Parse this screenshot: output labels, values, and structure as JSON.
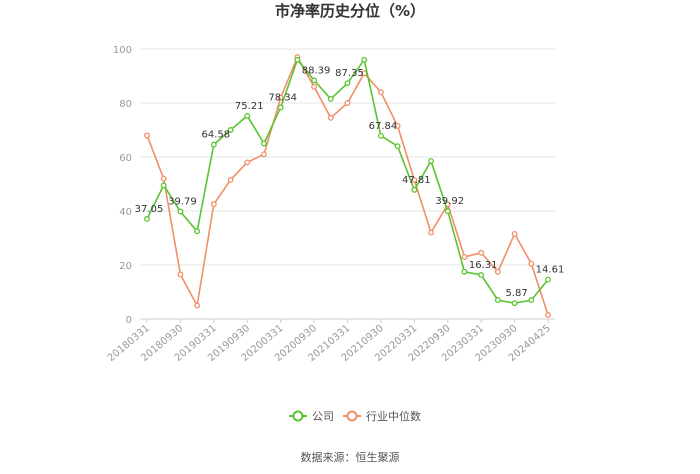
{
  "chart_data": {
    "type": "line",
    "title": "市净率历史分位（%）",
    "source": "数据来源：恒生聚源",
    "ylim": [
      0,
      100
    ],
    "yticks": [
      0,
      20,
      40,
      60,
      80,
      100
    ],
    "grid": true,
    "legend_position": "bottom",
    "x": [
      "20180331",
      "20180630",
      "20180930",
      "20181231",
      "20190331",
      "20190630",
      "20190930",
      "20191231",
      "20200331",
      "20200630",
      "20200930",
      "20201231",
      "20210331",
      "20210630",
      "20210930",
      "20211231",
      "20220331",
      "20220630",
      "20220930",
      "20221231",
      "20230331",
      "20230630",
      "20230930",
      "20231231",
      "20240425"
    ],
    "xtick_labels": [
      "20180331",
      "20180930",
      "20190331",
      "20190930",
      "20200331",
      "20200930",
      "20210331",
      "20210930",
      "20220331",
      "20220930",
      "20230331",
      "20230930",
      "20240425"
    ],
    "series": [
      {
        "name": "公司",
        "color": "#5ac42f",
        "values": [
          37.05,
          49.5,
          39.79,
          32.5,
          64.58,
          70.0,
          75.21,
          65.0,
          78.34,
          96.0,
          88.39,
          81.5,
          87.35,
          96.0,
          67.84,
          64.0,
          47.81,
          58.5,
          39.92,
          17.5,
          16.31,
          7.0,
          5.87,
          7.0,
          14.61
        ],
        "labels": [
          "37.05",
          null,
          "39.79",
          null,
          "64.58",
          null,
          "75.21",
          null,
          "78.34",
          null,
          "88.39",
          null,
          "87.35",
          null,
          "67.84",
          null,
          "47.81",
          null,
          "39.92",
          null,
          "16.31",
          null,
          "5.87",
          null,
          "14.61"
        ]
      },
      {
        "name": "行业中位数",
        "color": "#f28e68",
        "values": [
          68.0,
          52.0,
          16.5,
          5.0,
          42.5,
          51.5,
          58.0,
          61.0,
          82.0,
          97.0,
          86.0,
          74.5,
          80.0,
          91.0,
          84.0,
          71.5,
          51.5,
          32.0,
          42.5,
          23.0,
          24.5,
          17.5,
          31.5,
          20.5,
          1.5
        ]
      }
    ]
  }
}
